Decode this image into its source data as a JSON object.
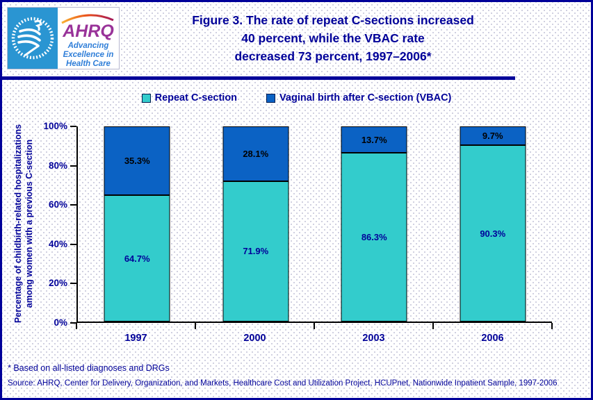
{
  "header": {
    "title_lines": [
      "Figure 3. The rate of repeat C-sections increased",
      "40 percent, while the VBAC rate",
      "decreased 73 percent, 1997–2006*"
    ],
    "logo": {
      "org": "AHRQ",
      "tagline_lines": [
        "Advancing",
        "Excellence in",
        "Health Care"
      ],
      "hhs_seal": "hhs-eagle-seal"
    }
  },
  "chart_data": {
    "type": "bar",
    "stacked": true,
    "categories": [
      "1997",
      "2000",
      "2003",
      "2006"
    ],
    "series": [
      {
        "name": "Repeat C-section",
        "color": "#33cccc",
        "label_color": "#000099",
        "values": [
          64.7,
          71.9,
          86.3,
          90.3
        ]
      },
      {
        "name": "Vaginal birth after C-section (VBAC)",
        "color": "#0b62c4",
        "label_color": "#000000",
        "values": [
          35.3,
          28.1,
          13.7,
          9.7
        ]
      }
    ],
    "value_suffix": "%",
    "title": "Figure 3. The rate of repeat C-sections increased 40 percent, while the VBAC rate decreased 73 percent, 1997–2006*",
    "xlabel": "",
    "ylabel_lines": [
      "Percentage of childbirth-related hospitalizations",
      "among women with a previous C-section"
    ],
    "yticks": [
      "0%",
      "20%",
      "40%",
      "60%",
      "80%",
      "100%"
    ],
    "ylim": [
      0,
      100
    ],
    "grid": false,
    "legend_position": "top-center"
  },
  "footnote": "* Based on all-listed diagnoses and DRGs",
  "source": "Source: AHRQ, Center for Delivery, Organization, and Markets, Healthcare Cost and Utilization Project, HCUPnet, Nationwide Inpatient Sample, 1997-2006",
  "colors": {
    "navy": "#000099",
    "axis_black": "#000000",
    "teal": "#33cccc",
    "blue": "#0b62c4",
    "logo_purple": "#993399",
    "logo_blue_bg": "#2a95d2",
    "logo_tagline_blue": "#2f7ed8"
  }
}
